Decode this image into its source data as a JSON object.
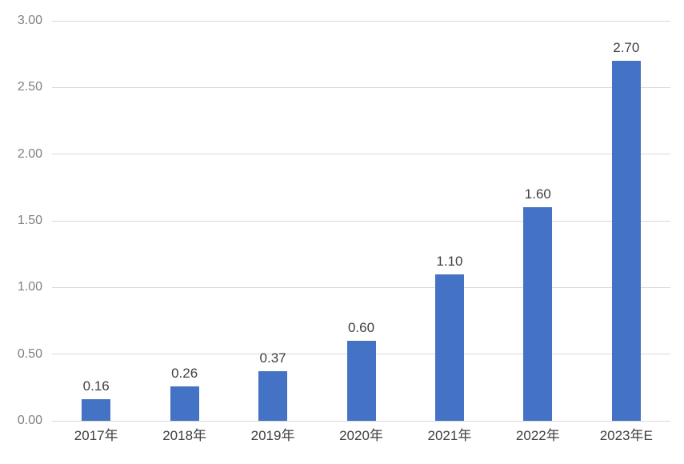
{
  "chart_data": {
    "type": "bar",
    "title": "",
    "xlabel": "",
    "ylabel": "",
    "categories": [
      "2017年",
      "2018年",
      "2019年",
      "2020年",
      "2021年",
      "2022年",
      "2023年E"
    ],
    "values": [
      0.16,
      0.26,
      0.37,
      0.6,
      1.1,
      1.6,
      2.7
    ],
    "data_labels": [
      "0.16",
      "0.26",
      "0.37",
      "0.60",
      "1.10",
      "1.60",
      "2.70"
    ],
    "ylim": [
      0,
      3.0
    ],
    "ytick_interval": 0.5,
    "ytick_labels": [
      "0.00",
      "0.50",
      "1.00",
      "1.50",
      "2.00",
      "2.50",
      "3.00"
    ],
    "grid": true,
    "legend": "none",
    "colors": {
      "bar": "#4472c4",
      "gridline": "#d9d9d9",
      "axis_line": "#d9d9d9",
      "y_tick_label": "#7f7f7f",
      "x_tick_label": "#404040",
      "data_label": "#404040",
      "background": "#ffffff"
    }
  }
}
